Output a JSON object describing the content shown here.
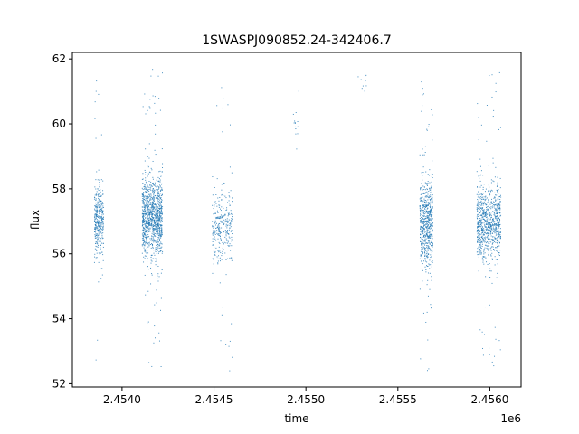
{
  "chart_data": {
    "type": "scatter",
    "title": "1SWASPJ090852.24-342406.7",
    "xlabel": "time",
    "ylabel": "flux",
    "x_offset_label": "1e6",
    "xlim": [
      2.45373,
      2.45617
    ],
    "ylim": [
      51.9,
      62.2
    ],
    "x_ticks": [
      2.454,
      2.4545,
      2.455,
      2.4555,
      2.456
    ],
    "x_tick_labels": [
      "2.4540",
      "2.4545",
      "2.4550",
      "2.4555",
      "2.4560"
    ],
    "y_ticks": [
      52,
      54,
      56,
      58,
      60,
      62
    ],
    "y_tick_labels": [
      "52",
      "54",
      "56",
      "58",
      "60",
      "62"
    ],
    "grid": false,
    "point_color": "#1f77b4",
    "series": [
      {
        "clusters": [
          {
            "x_start": 2.45385,
            "x_end": 2.4539,
            "y_center": 57.0,
            "y_spread": 0.55,
            "count": 350
          },
          {
            "x_start": 2.45411,
            "x_end": 2.45422,
            "y_center": 57.1,
            "y_spread": 0.6,
            "count": 1100
          },
          {
            "x_start": 2.45449,
            "x_end": 2.4546,
            "y_center": 56.8,
            "y_spread": 0.55,
            "count": 300
          },
          {
            "x_start": 2.45493,
            "x_end": 2.45497,
            "y_center": 60.0,
            "y_spread": 0.4,
            "count": 14
          },
          {
            "x_start": 2.45528,
            "x_end": 2.45533,
            "y_center": 61.4,
            "y_spread": 0.2,
            "count": 10
          },
          {
            "x_start": 2.45562,
            "x_end": 2.45569,
            "y_center": 56.9,
            "y_spread": 0.65,
            "count": 650
          },
          {
            "x_start": 2.45593,
            "x_end": 2.45606,
            "y_center": 57.0,
            "y_spread": 0.55,
            "count": 850
          }
        ]
      }
    ]
  }
}
